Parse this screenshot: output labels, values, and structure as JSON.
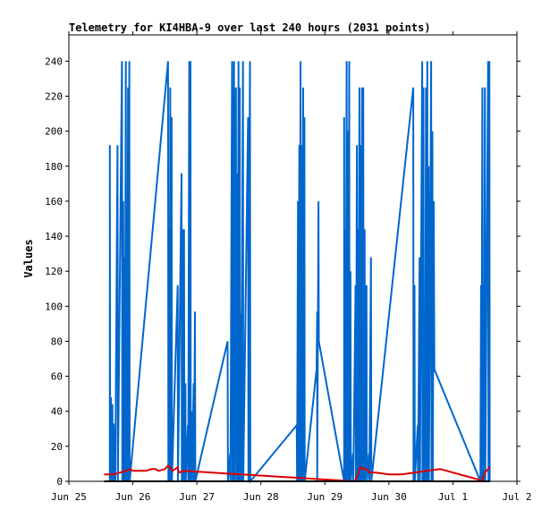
{
  "chart_data": {
    "type": "line",
    "title": "Telemetry for KI4HBA-9 over last 240 hours (2031 points)",
    "xlabel": "",
    "ylabel": "Values",
    "x_ticks": [
      "Jun 25",
      "Jun 26",
      "Jun 27",
      "Jun 28",
      "Jun 29",
      "Jun 30",
      "Jul 1",
      "Jul 2"
    ],
    "x_unit": "days since Jun 25 00:00",
    "xlim": [
      0,
      7
    ],
    "ylim": [
      0,
      255
    ],
    "y_ticks": [
      0,
      20,
      40,
      60,
      80,
      100,
      120,
      140,
      160,
      180,
      200,
      220,
      240
    ],
    "grid": false,
    "series": [
      {
        "name": "",
        "color": "#0066cc",
        "points": [
          [
            0.64,
            0
          ],
          [
            0.64,
            192
          ],
          [
            0.645,
            0
          ],
          [
            0.66,
            48
          ],
          [
            0.665,
            0
          ],
          [
            0.68,
            44
          ],
          [
            0.685,
            0
          ],
          [
            0.7,
            33
          ],
          [
            0.705,
            0
          ],
          [
            0.72,
            30
          ],
          [
            0.725,
            0
          ],
          [
            0.76,
            192
          ],
          [
            0.765,
            0
          ],
          [
            0.83,
            240
          ],
          [
            0.835,
            0
          ],
          [
            0.85,
            160
          ],
          [
            0.855,
            0
          ],
          [
            0.87,
            128
          ],
          [
            0.875,
            0
          ],
          [
            0.89,
            240
          ],
          [
            0.895,
            0
          ],
          [
            0.905,
            144
          ],
          [
            0.91,
            0
          ],
          [
            0.925,
            225
          ],
          [
            0.93,
            0
          ],
          [
            0.945,
            240
          ],
          [
            0.95,
            0
          ],
          [
            1.55,
            240
          ],
          [
            1.555,
            0
          ],
          [
            1.57,
            144
          ],
          [
            1.575,
            0
          ],
          [
            1.585,
            225
          ],
          [
            1.59,
            0
          ],
          [
            1.605,
            208
          ],
          [
            1.61,
            0
          ],
          [
            1.7,
            112
          ],
          [
            1.705,
            0
          ],
          [
            1.76,
            176
          ],
          [
            1.765,
            0
          ],
          [
            1.78,
            144
          ],
          [
            1.785,
            0
          ],
          [
            1.8,
            144
          ],
          [
            1.805,
            0
          ],
          [
            1.82,
            56
          ],
          [
            1.825,
            0
          ],
          [
            1.86,
            32
          ],
          [
            1.865,
            0
          ],
          [
            1.88,
            240
          ],
          [
            1.885,
            0
          ],
          [
            1.9,
            240
          ],
          [
            1.905,
            0
          ],
          [
            1.92,
            40
          ],
          [
            1.925,
            0
          ],
          [
            1.95,
            56
          ],
          [
            1.955,
            0
          ],
          [
            1.97,
            97
          ],
          [
            1.975,
            0
          ],
          [
            2.48,
            80
          ],
          [
            2.485,
            0
          ],
          [
            2.52,
            16
          ],
          [
            2.525,
            0
          ],
          [
            2.55,
            240
          ],
          [
            2.555,
            0
          ],
          [
            2.58,
            240
          ],
          [
            2.585,
            0
          ],
          [
            2.61,
            225
          ],
          [
            2.615,
            0
          ],
          [
            2.63,
            176
          ],
          [
            2.635,
            0
          ],
          [
            2.65,
            240
          ],
          [
            2.655,
            0
          ],
          [
            2.67,
            225
          ],
          [
            2.675,
            0
          ],
          [
            2.69,
            96
          ],
          [
            2.695,
            0
          ],
          [
            2.72,
            240
          ],
          [
            2.725,
            0
          ],
          [
            2.8,
            208
          ],
          [
            2.805,
            0
          ],
          [
            2.83,
            240
          ],
          [
            2.835,
            0
          ],
          [
            3.56,
            32
          ],
          [
            3.565,
            0
          ],
          [
            3.58,
            160
          ],
          [
            3.585,
            0
          ],
          [
            3.6,
            192
          ],
          [
            3.605,
            0
          ],
          [
            3.62,
            240
          ],
          [
            3.625,
            0
          ],
          [
            3.64,
            192
          ],
          [
            3.645,
            0
          ],
          [
            3.66,
            225
          ],
          [
            3.665,
            0
          ],
          [
            3.68,
            208
          ],
          [
            3.685,
            0
          ],
          [
            3.87,
            64
          ],
          [
            3.88,
            97
          ],
          [
            3.88,
            0
          ],
          [
            3.9,
            160
          ],
          [
            3.905,
            80
          ],
          [
            4.3,
            0
          ],
          [
            4.3,
            208
          ],
          [
            4.305,
            0
          ],
          [
            4.32,
            144
          ],
          [
            4.325,
            0
          ],
          [
            4.34,
            240
          ],
          [
            4.345,
            0
          ],
          [
            4.36,
            200
          ],
          [
            4.365,
            0
          ],
          [
            4.38,
            240
          ],
          [
            4.385,
            0
          ],
          [
            4.4,
            120
          ],
          [
            4.405,
            0
          ],
          [
            4.44,
            16
          ],
          [
            4.445,
            0
          ],
          [
            4.48,
            112
          ],
          [
            4.485,
            0
          ],
          [
            4.5,
            192
          ],
          [
            4.505,
            0
          ],
          [
            4.52,
            144
          ],
          [
            4.525,
            0
          ],
          [
            4.54,
            225
          ],
          [
            4.545,
            0
          ],
          [
            4.56,
            192
          ],
          [
            4.565,
            0
          ],
          [
            4.58,
            225
          ],
          [
            4.585,
            0
          ],
          [
            4.6,
            225
          ],
          [
            4.605,
            0
          ],
          [
            4.62,
            144
          ],
          [
            4.625,
            0
          ],
          [
            4.65,
            112
          ],
          [
            4.655,
            0
          ],
          [
            4.69,
            16
          ],
          [
            4.695,
            0
          ],
          [
            4.72,
            128
          ],
          [
            4.725,
            0
          ],
          [
            5.38,
            225
          ],
          [
            5.385,
            0
          ],
          [
            5.4,
            112
          ],
          [
            5.405,
            0
          ],
          [
            5.45,
            32
          ],
          [
            5.455,
            0
          ],
          [
            5.48,
            128
          ],
          [
            5.485,
            0
          ],
          [
            5.52,
            240
          ],
          [
            5.525,
            0
          ],
          [
            5.54,
            225
          ],
          [
            5.545,
            0
          ],
          [
            5.56,
            96
          ],
          [
            5.565,
            0
          ],
          [
            5.58,
            225
          ],
          [
            5.585,
            0
          ],
          [
            5.6,
            240
          ],
          [
            5.605,
            0
          ],
          [
            5.62,
            180
          ],
          [
            5.625,
            0
          ],
          [
            5.66,
            240
          ],
          [
            5.665,
            0
          ],
          [
            5.68,
            200
          ],
          [
            5.685,
            0
          ],
          [
            5.7,
            160
          ],
          [
            5.71,
            64
          ],
          [
            6.43,
            0
          ],
          [
            6.44,
            112
          ],
          [
            6.445,
            0
          ],
          [
            6.46,
            225
          ],
          [
            6.465,
            0
          ],
          [
            6.48,
            112
          ],
          [
            6.485,
            0
          ],
          [
            6.5,
            225
          ],
          [
            6.505,
            0
          ],
          [
            6.55,
            240
          ],
          [
            6.555,
            0
          ],
          [
            6.57,
            240
          ],
          [
            6.575,
            0
          ]
        ]
      },
      {
        "name": "",
        "color": "#dd0000",
        "points": [
          [
            0.55,
            4
          ],
          [
            0.6,
            4
          ],
          [
            0.7,
            4
          ],
          [
            0.8,
            5
          ],
          [
            0.9,
            6
          ],
          [
            0.95,
            7
          ],
          [
            1.0,
            6
          ],
          [
            1.1,
            6
          ],
          [
            1.2,
            6
          ],
          [
            1.3,
            7
          ],
          [
            1.35,
            7
          ],
          [
            1.4,
            6
          ],
          [
            1.5,
            7
          ],
          [
            1.55,
            9
          ],
          [
            1.6,
            7
          ],
          [
            1.62,
            6
          ],
          [
            1.7,
            8
          ],
          [
            1.72,
            5
          ],
          [
            1.8,
            6
          ],
          [
            4.46,
            0
          ],
          [
            4.5,
            2
          ],
          [
            4.55,
            8
          ],
          [
            4.6,
            7
          ],
          [
            4.65,
            7
          ],
          [
            4.7,
            5
          ],
          [
            4.8,
            5
          ],
          [
            5.0,
            4
          ],
          [
            5.2,
            4
          ],
          [
            5.4,
            5
          ],
          [
            5.6,
            6
          ],
          [
            5.8,
            7
          ],
          [
            6.0,
            5
          ],
          [
            6.2,
            3
          ],
          [
            6.4,
            1
          ],
          [
            6.45,
            0
          ],
          [
            6.5,
            5
          ],
          [
            6.55,
            7
          ],
          [
            6.58,
            8
          ]
        ]
      },
      {
        "name": "",
        "color": "#000000",
        "points": [
          [
            0.55,
            0
          ],
          [
            6.58,
            0
          ]
        ]
      }
    ]
  }
}
